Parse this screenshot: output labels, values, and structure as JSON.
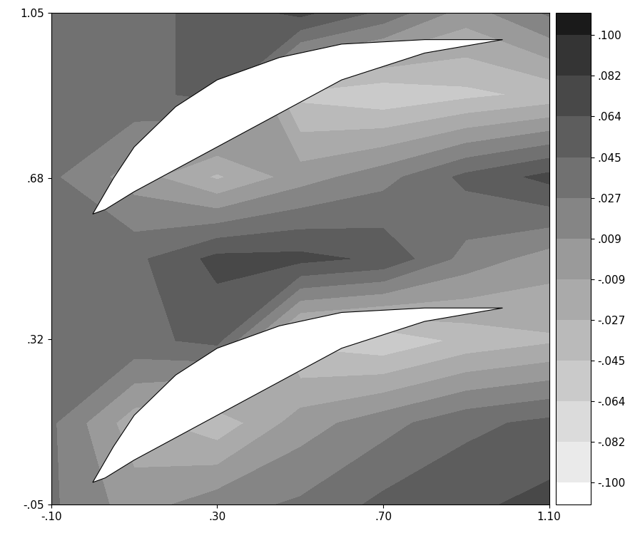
{
  "chart_data": {
    "type": "contour",
    "xlim": [
      -0.1,
      1.1
    ],
    "ylim": [
      -0.05,
      1.05
    ],
    "xticks": [
      {
        "value": -0.1,
        "label": "-.10"
      },
      {
        "value": 0.3,
        "label": ".30"
      },
      {
        "value": 0.7,
        "label": ".70"
      },
      {
        "value": 1.1,
        "label": "1.10"
      }
    ],
    "yticks": [
      {
        "value": -0.05,
        "label": "-.05"
      },
      {
        "value": 0.32,
        "label": ".32"
      },
      {
        "value": 0.68,
        "label": ".68"
      },
      {
        "value": 1.05,
        "label": "1.05"
      }
    ],
    "field": {
      "x": [
        -0.1,
        0.1,
        0.3,
        0.5,
        0.7,
        0.9,
        1.1
      ],
      "y": [
        -0.05,
        0.133,
        0.317,
        0.5,
        0.683,
        0.867,
        1.05
      ],
      "values": [
        [
          0.03,
          0.0,
          0.02,
          0.03,
          0.05,
          0.06,
          0.07
        ],
        [
          0.03,
          -0.02,
          -0.04,
          0.0,
          0.02,
          0.04,
          0.05
        ],
        [
          0.03,
          0.04,
          0.05,
          -0.05,
          -0.06,
          -0.04,
          -0.03
        ],
        [
          0.03,
          0.04,
          0.07,
          0.07,
          0.06,
          0.02,
          0.0
        ],
        [
          0.03,
          0.0,
          -0.03,
          0.0,
          0.02,
          0.05,
          0.07
        ],
        [
          0.03,
          0.04,
          0.05,
          -0.05,
          -0.06,
          -0.05,
          -0.04
        ],
        [
          0.03,
          0.04,
          0.05,
          0.07,
          0.04,
          0.0,
          0.03
        ]
      ]
    },
    "blades": [
      [
        [
          0.0,
          0.0
        ],
        [
          0.05,
          0.08
        ],
        [
          0.1,
          0.15
        ],
        [
          0.2,
          0.24
        ],
        [
          0.3,
          0.3
        ],
        [
          0.45,
          0.35
        ],
        [
          0.6,
          0.38
        ],
        [
          0.8,
          0.39
        ],
        [
          0.988,
          0.39
        ],
        [
          0.8,
          0.36
        ],
        [
          0.6,
          0.3
        ],
        [
          0.4,
          0.2
        ],
        [
          0.2,
          0.1
        ],
        [
          0.1,
          0.05
        ],
        [
          0.03,
          0.01
        ]
      ],
      [
        [
          0.0,
          0.6
        ],
        [
          0.05,
          0.68
        ],
        [
          0.1,
          0.75
        ],
        [
          0.2,
          0.84
        ],
        [
          0.3,
          0.9
        ],
        [
          0.45,
          0.95
        ],
        [
          0.6,
          0.98
        ],
        [
          0.8,
          0.99
        ],
        [
          0.988,
          0.99
        ],
        [
          0.8,
          0.96
        ],
        [
          0.6,
          0.9
        ],
        [
          0.4,
          0.8
        ],
        [
          0.2,
          0.7
        ],
        [
          0.1,
          0.65
        ],
        [
          0.03,
          0.61
        ]
      ]
    ],
    "colorbar": {
      "range": [
        -0.1,
        0.1
      ],
      "ticks": [
        {
          "value": 0.1,
          "label": ".100"
        },
        {
          "value": 0.082,
          "label": ".082"
        },
        {
          "value": 0.064,
          "label": ".064"
        },
        {
          "value": 0.045,
          "label": ".045"
        },
        {
          "value": 0.027,
          "label": ".027"
        },
        {
          "value": 0.009,
          "label": ".009"
        },
        {
          "value": -0.009,
          "label": "-.009"
        },
        {
          "value": -0.027,
          "label": "-.027"
        },
        {
          "value": -0.045,
          "label": "-.045"
        },
        {
          "value": -0.064,
          "label": "-.064"
        },
        {
          "value": -0.082,
          "label": "-.082"
        },
        {
          "value": -0.1,
          "label": "-.100"
        }
      ]
    }
  }
}
